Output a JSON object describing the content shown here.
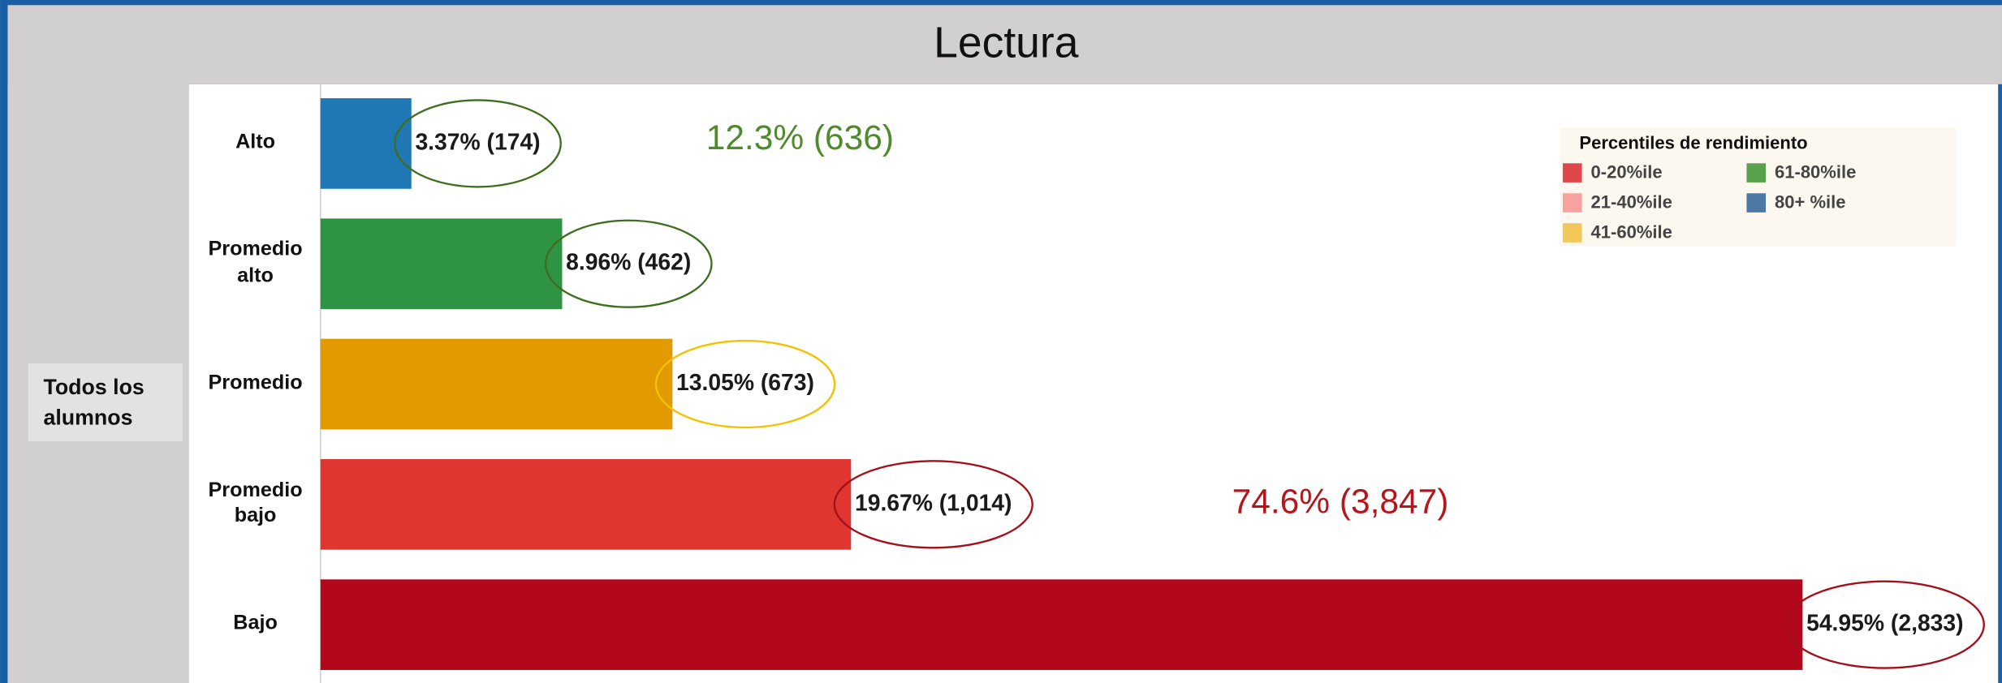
{
  "chart_data": {
    "type": "bar",
    "orientation": "horizontal",
    "title": "Lectura",
    "group_label": "Todos los alumnos",
    "categories": [
      "Alto",
      "Promedio alto",
      "Promedio",
      "Promedio bajo",
      "Bajo"
    ],
    "values": [
      3.37,
      8.96,
      13.05,
      19.67,
      54.95
    ],
    "value_labels": [
      "3.37% (174)",
      "8.96% (462)",
      "13.05% (673)",
      "19.67% (1,014)",
      "54.95% (2,833)"
    ],
    "colors": [
      "#1f77b4",
      "#2e9343",
      "#e39a00",
      "#e03632",
      "#b3081c"
    ],
    "label_outline_colors": [
      "#3f6e1f",
      "#3f6e1f",
      "#f2c200",
      "#a3101c",
      "#a3101c"
    ],
    "annotations": [
      {
        "text": "12.3% (636)",
        "color": "#4f8a2c"
      },
      {
        "text": "74.6% (3,847)",
        "color": "#b4161b"
      }
    ],
    "legend": {
      "title": "Percentiles de rendimiento",
      "position": "upper right",
      "items": [
        {
          "name": "0-20%ile",
          "color": "#e0474c"
        },
        {
          "name": "21-40%ile",
          "color": "#f7a29e"
        },
        {
          "name": "41-60%ile",
          "color": "#f2c85a"
        },
        {
          "name": "61-80%ile",
          "color": "#59a14f"
        },
        {
          "name": "80+ %ile",
          "color": "#4e79a7"
        }
      ]
    }
  }
}
